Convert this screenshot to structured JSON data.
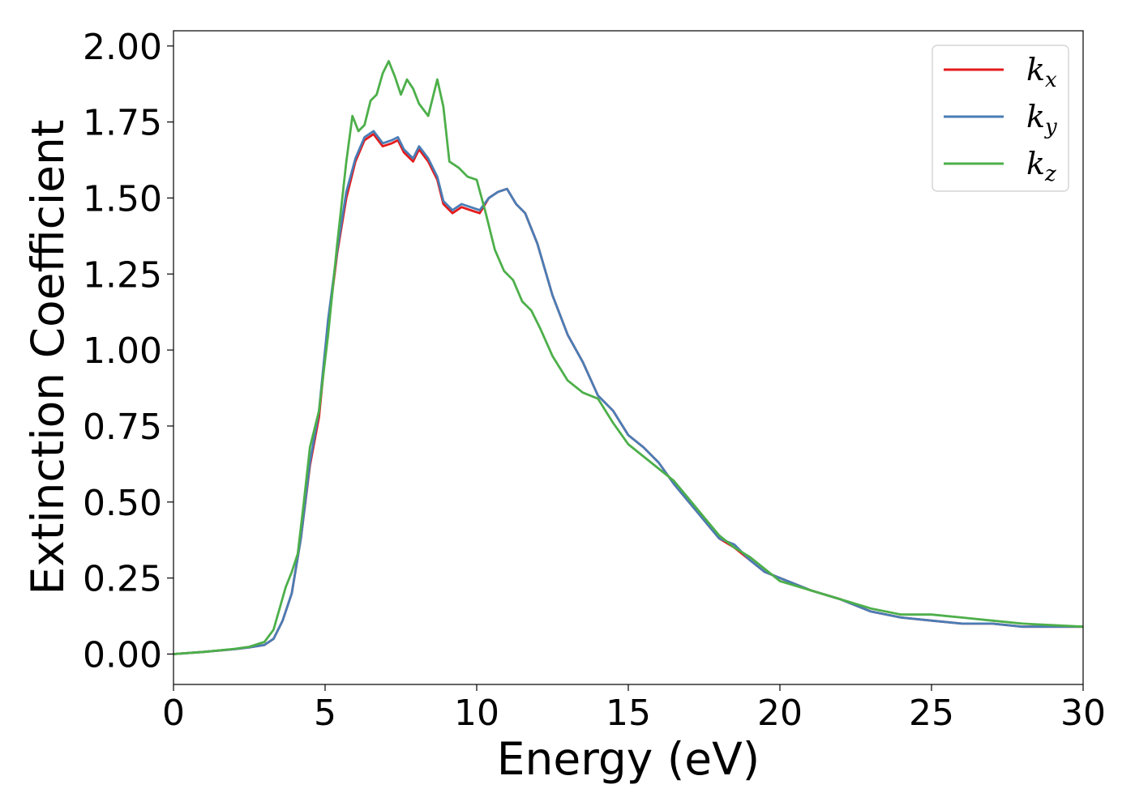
{
  "chart_data": {
    "type": "line",
    "title": "",
    "xlabel": "Energy (eV)",
    "ylabel": "Extinction Coefficient",
    "xlim": [
      0,
      30
    ],
    "ylim": [
      -0.1,
      2.05
    ],
    "xticks": [
      0,
      5,
      10,
      15,
      20,
      25,
      30
    ],
    "xtick_labels": [
      "0",
      "5",
      "10",
      "15",
      "20",
      "25",
      "30"
    ],
    "yticks": [
      0.0,
      0.25,
      0.5,
      0.75,
      1.0,
      1.25,
      1.5,
      1.75,
      2.0
    ],
    "ytick_labels": [
      "0.00",
      "0.25",
      "0.50",
      "0.75",
      "1.00",
      "1.25",
      "1.50",
      "1.75",
      "2.00"
    ],
    "grid": false,
    "legend_position": "top-right",
    "series": [
      {
        "name": "k_x",
        "label_main": "k",
        "label_sub": "x",
        "color": "#e41a1c",
        "x": [
          0,
          1,
          2,
          2.5,
          3,
          3.3,
          3.6,
          3.9,
          4.2,
          4.5,
          4.8,
          5.1,
          5.4,
          5.7,
          6.0,
          6.3,
          6.6,
          6.9,
          7.2,
          7.4,
          7.6,
          7.9,
          8.1,
          8.4,
          8.7,
          8.9,
          9.2,
          9.5,
          9.8,
          10.1,
          10.4,
          10.7,
          11.0,
          11.3,
          11.6,
          12.0,
          12.5,
          13.0,
          13.5,
          14.0,
          14.5,
          15.0,
          15.5,
          16.0,
          16.5,
          17.0,
          17.5,
          18.0,
          18.5,
          19.0,
          19.5,
          20.0,
          21.0,
          22.0,
          23.0,
          24.0,
          25.0,
          26.0,
          27.0,
          28.0,
          29.0,
          30.0
        ],
        "y": [
          0.0,
          0.007,
          0.016,
          0.022,
          0.03,
          0.05,
          0.11,
          0.2,
          0.38,
          0.62,
          0.78,
          1.08,
          1.32,
          1.5,
          1.62,
          1.69,
          1.71,
          1.67,
          1.68,
          1.69,
          1.65,
          1.62,
          1.66,
          1.62,
          1.56,
          1.48,
          1.45,
          1.47,
          1.46,
          1.45,
          1.5,
          1.52,
          1.53,
          1.48,
          1.45,
          1.35,
          1.18,
          1.05,
          0.96,
          0.85,
          0.8,
          0.72,
          0.68,
          0.63,
          0.56,
          0.5,
          0.44,
          0.38,
          0.35,
          0.31,
          0.27,
          0.25,
          0.21,
          0.18,
          0.14,
          0.12,
          0.11,
          0.1,
          0.1,
          0.09,
          0.09,
          0.09
        ]
      },
      {
        "name": "k_y",
        "label_main": "k",
        "label_sub": "y",
        "color": "#4a7db5",
        "x": [
          0,
          1,
          2,
          2.5,
          3,
          3.3,
          3.6,
          3.9,
          4.2,
          4.5,
          4.8,
          5.1,
          5.4,
          5.7,
          6.0,
          6.3,
          6.6,
          6.9,
          7.2,
          7.4,
          7.6,
          7.9,
          8.1,
          8.4,
          8.7,
          8.9,
          9.2,
          9.5,
          9.8,
          10.1,
          10.4,
          10.7,
          11.0,
          11.3,
          11.6,
          12.0,
          12.5,
          13.0,
          13.5,
          14.0,
          14.5,
          15.0,
          15.5,
          16.0,
          16.5,
          17.0,
          17.5,
          18.0,
          18.5,
          19.0,
          19.5,
          20.0,
          21.0,
          22.0,
          23.0,
          24.0,
          25.0,
          26.0,
          27.0,
          28.0,
          29.0,
          30.0
        ],
        "y": [
          0.0,
          0.007,
          0.016,
          0.022,
          0.03,
          0.05,
          0.11,
          0.2,
          0.38,
          0.63,
          0.8,
          1.1,
          1.33,
          1.52,
          1.63,
          1.7,
          1.72,
          1.68,
          1.69,
          1.7,
          1.66,
          1.63,
          1.67,
          1.63,
          1.57,
          1.49,
          1.46,
          1.48,
          1.47,
          1.46,
          1.5,
          1.52,
          1.53,
          1.48,
          1.45,
          1.35,
          1.18,
          1.05,
          0.96,
          0.85,
          0.8,
          0.72,
          0.68,
          0.63,
          0.56,
          0.5,
          0.44,
          0.38,
          0.36,
          0.31,
          0.27,
          0.25,
          0.21,
          0.18,
          0.14,
          0.12,
          0.11,
          0.1,
          0.1,
          0.09,
          0.09,
          0.09
        ]
      },
      {
        "name": "k_z",
        "label_main": "k",
        "label_sub": "z",
        "color": "#4daf4a",
        "x": [
          0,
          1,
          2,
          2.5,
          3,
          3.3,
          3.5,
          3.7,
          3.9,
          4.1,
          4.3,
          4.5,
          4.8,
          5.1,
          5.4,
          5.7,
          5.9,
          6.1,
          6.3,
          6.5,
          6.7,
          6.9,
          7.1,
          7.3,
          7.5,
          7.7,
          7.9,
          8.1,
          8.4,
          8.7,
          8.9,
          9.1,
          9.4,
          9.7,
          10.0,
          10.3,
          10.6,
          10.9,
          11.2,
          11.5,
          11.8,
          12.1,
          12.5,
          13.0,
          13.5,
          14.0,
          14.5,
          15.0,
          15.5,
          16.0,
          16.5,
          17.0,
          17.5,
          18.0,
          18.5,
          19.0,
          19.5,
          20.0,
          21.0,
          22.0,
          23.0,
          24.0,
          25.0,
          26.0,
          27.0,
          28.0,
          29.0,
          30.0
        ],
        "y": [
          0.0,
          0.007,
          0.017,
          0.024,
          0.04,
          0.08,
          0.15,
          0.22,
          0.27,
          0.33,
          0.5,
          0.68,
          0.8,
          1.05,
          1.35,
          1.62,
          1.77,
          1.72,
          1.74,
          1.82,
          1.84,
          1.91,
          1.95,
          1.9,
          1.84,
          1.89,
          1.86,
          1.81,
          1.77,
          1.89,
          1.8,
          1.62,
          1.6,
          1.57,
          1.56,
          1.45,
          1.33,
          1.26,
          1.23,
          1.16,
          1.13,
          1.07,
          0.98,
          0.9,
          0.86,
          0.84,
          0.76,
          0.69,
          0.65,
          0.61,
          0.57,
          0.51,
          0.45,
          0.39,
          0.35,
          0.32,
          0.28,
          0.24,
          0.21,
          0.18,
          0.15,
          0.13,
          0.13,
          0.12,
          0.11,
          0.1,
          0.095,
          0.09
        ]
      }
    ]
  }
}
